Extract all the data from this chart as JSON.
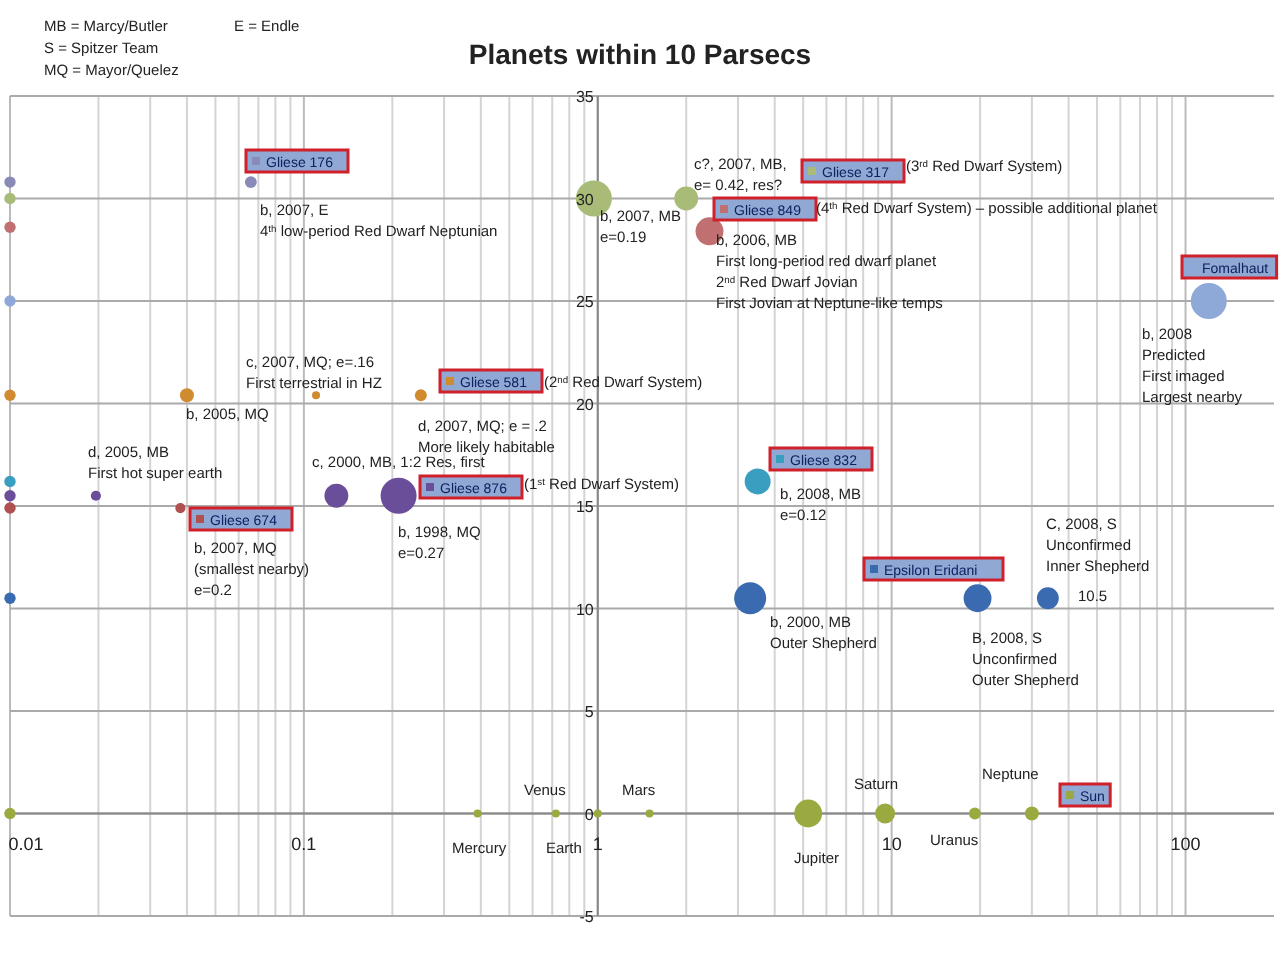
{
  "chart_data": {
    "type": "bubble",
    "title": "Planets within 10 Parsecs",
    "log": "x",
    "grid": true,
    "legend": "top",
    "xlim": [
      0.01,
      200
    ],
    "xticks": [
      0.01,
      0.1,
      1,
      10,
      100
    ],
    "ylim": [
      -5,
      35
    ],
    "yticks": [
      -5,
      0,
      5,
      10,
      15,
      20,
      25,
      30,
      35
    ],
    "series": [
      {
        "name": "Gliese 176",
        "color": "#8a8ab8",
        "x": [
          0.01,
          0.066
        ],
        "values": [
          30.8,
          30.8
        ],
        "sizes": [
          0.1,
          0.11
        ]
      },
      {
        "name": "Gliese 317",
        "color": "#a8bc78",
        "x": [
          0.01,
          0.97,
          2.0
        ],
        "values": [
          30,
          30,
          30
        ],
        "sizes": [
          0.1,
          1,
          0.44
        ]
      },
      {
        "name": "Gliese 849",
        "color": "#c07070",
        "x": [
          0.01,
          2.4
        ],
        "values": [
          28.6,
          28.4
        ],
        "sizes": [
          0.1,
          0.6
        ]
      },
      {
        "name": "Fomalhaut",
        "color": "#8ea8d8",
        "x": [
          0.01,
          120
        ],
        "values": [
          25,
          25
        ],
        "sizes": [
          0.1,
          1
        ]
      },
      {
        "name": "Gliese 581",
        "color": "#d08a30",
        "x": [
          0.01,
          0.04,
          0.11,
          0.25
        ],
        "values": [
          20.4,
          20.4,
          20.4,
          20.4
        ],
        "sizes": [
          0.1,
          0.15,
          0.05,
          0.11
        ]
      },
      {
        "name": "Gliese 832",
        "color": "#3a9ec0",
        "x": [
          0.01,
          3.5
        ],
        "values": [
          16.2,
          16.2
        ],
        "sizes": [
          0.1,
          0.52
        ]
      },
      {
        "name": "Gliese 876",
        "color": "#6a4e9a",
        "x": [
          0.01,
          0.0196,
          0.129,
          0.21
        ],
        "values": [
          15.5,
          15.5,
          15.5,
          15.5
        ],
        "sizes": [
          0.1,
          0.08,
          0.44,
          1
        ]
      },
      {
        "name": "Gliese 674",
        "color": "#b05050",
        "x": [
          0.01,
          0.038
        ],
        "values": [
          14.9,
          14.9
        ],
        "sizes": [
          0.1,
          0.08
        ]
      },
      {
        "name": "Epsilon Eridani",
        "color": "#3a6ab0",
        "x": [
          0.01,
          3.3,
          19.6,
          34
        ],
        "values": [
          10.5,
          10.5,
          10.5,
          10.5
        ],
        "sizes": [
          0.1,
          0.79,
          0.6,
          0.37
        ]
      },
      {
        "name": "Sun",
        "color": "#9aaa40",
        "x": [
          0.01,
          0.39,
          0.72,
          1,
          1.5,
          5.2,
          9.5,
          19.2,
          30
        ],
        "values": [
          0,
          0,
          0,
          0,
          0,
          0,
          0,
          0,
          0
        ],
        "sizes": [
          0.1,
          0.05,
          0.05,
          0.05,
          0.05,
          0.6,
          0.31,
          0.11,
          0.15
        ]
      }
    ],
    "annotations": [
      "MB = Marcy/Butler",
      "S = Spitzer Team",
      "MQ = Mayor/Quelez",
      "E = Endle",
      "b, 2007, E\n4$^{th}$ low-period Red Dwarf Neptunian",
      "c, 2007, MQ; e=.16\nFirst terrestrial in HZ",
      "b, 2005, MQ",
      "(2$^{nd}$ Red Dwarf System)",
      "d, 2007, MQ; e = .2\nMore likely habitable",
      "d, 2005, MB\nFirst hot super earth",
      "c, 2000, MB, 1:2 Res, first",
      "(1$^{st}$ Red Dwarf System)",
      "b, 1998, MQ\ne=0.27",
      "b, 2007, MQ\n(smallest nearby)\ne=0.2",
      "Mercury",
      "Venus",
      "Earth",
      "Mars",
      "Jupiter",
      "Saturn",
      "Uranus",
      "Neptune",
      "b, 2007, MB\ne=0.19",
      "c?, 2007, MB,\ne= 0.42, res?",
      "(3$^{rd}$ Red Dwarf System)",
      "(4$^{th}$ Red Dwarf System) – possible additional planet",
      "b, 2006, MB\nFirst long-period red dwarf planet\n2$^{nd}$ Red Dwarf Jovian\nFirst Jovian at Neptune-like temps",
      "b, 2008\nPredicted\nFirst imaged\nLargest nearby",
      "b, 2008, MB\ne=0.12",
      "C, 2008, S\nUnconfirmed\nInner Shepherd",
      "10.5",
      "b, 2000, MB\nOuter Shepherd",
      "B, 2008, S\nUnconfirmed\nOuter Shepherd"
    ]
  }
}
